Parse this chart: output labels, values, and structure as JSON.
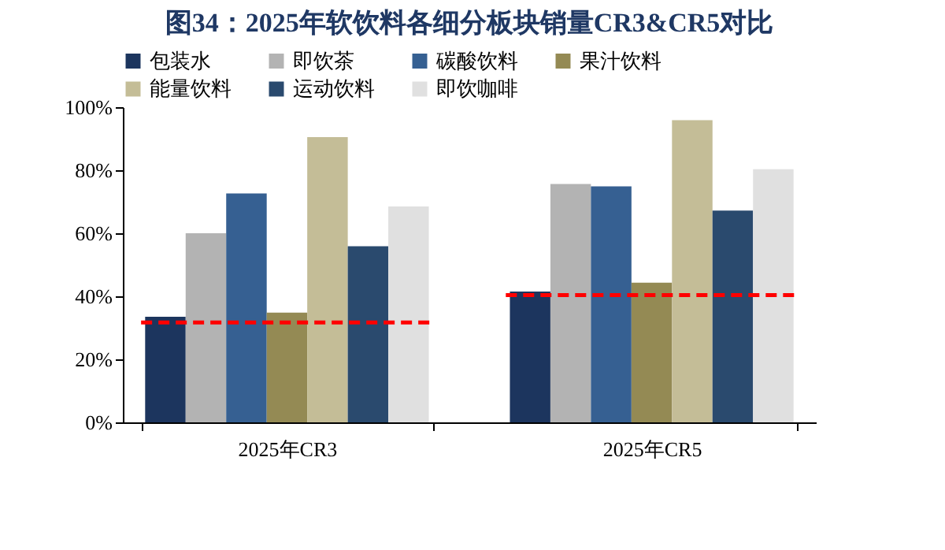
{
  "chart_data": {
    "type": "bar",
    "title": "图34：2025年软饮料各细分板块销量CR3&CR5对比",
    "categories": [
      "2025年CR3",
      "2025年CR5"
    ],
    "series": [
      {
        "name": "包装水",
        "color": "#1c355e",
        "values": [
          33.5,
          41.5
        ]
      },
      {
        "name": "即饮茶",
        "color": "#b3b3b3",
        "values": [
          60,
          75.6
        ]
      },
      {
        "name": "碳酸饮料",
        "color": "#366092",
        "values": [
          72.6,
          74.9
        ]
      },
      {
        "name": "果汁饮料",
        "color": "#948a54",
        "values": [
          34.8,
          44.3
        ]
      },
      {
        "name": "能量饮料",
        "color": "#c4bd97",
        "values": [
          90.5,
          95.9
        ]
      },
      {
        "name": "运动饮料",
        "color": "#2a4a6e",
        "values": [
          55.9,
          67.2
        ]
      },
      {
        "name": "即饮咖啡",
        "color": "#e0e0e0",
        "values": [
          68.5,
          80.3
        ]
      }
    ],
    "ref_lines": [
      {
        "axis": "y",
        "value": 31.7,
        "color": "#ff0000",
        "line_style": "dashed"
      },
      {
        "axis": "y",
        "value": 40.4,
        "color": "#ff0000",
        "line_style": "dashed"
      }
    ],
    "ylim": [
      0,
      100
    ],
    "yticks": [
      {
        "value": 0,
        "label": "0%"
      },
      {
        "value": 20,
        "label": "20%"
      },
      {
        "value": 40,
        "label": "40%"
      },
      {
        "value": 60,
        "label": "60%"
      },
      {
        "value": 80,
        "label": "80%"
      },
      {
        "value": 100,
        "label": "100%"
      }
    ],
    "grid": false,
    "legend": "top"
  }
}
